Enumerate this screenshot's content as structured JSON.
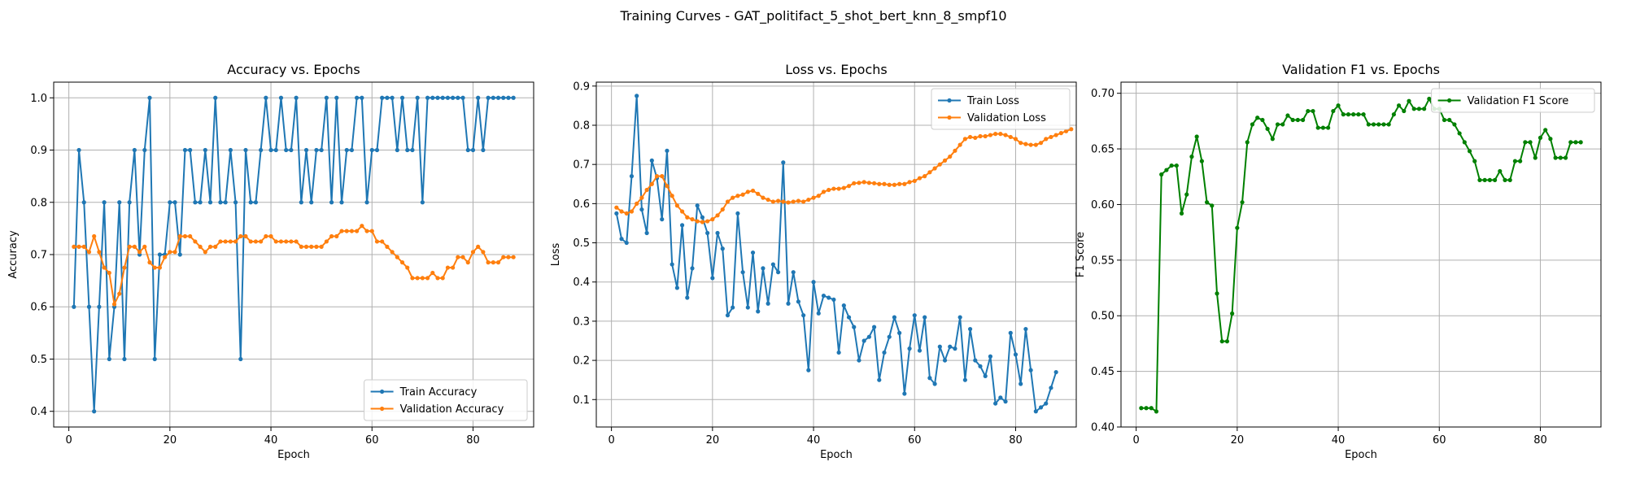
{
  "suptitle": "Training Curves - GAT_politifact_5_shot_bert_knn_8_smpf10",
  "chart_data": [
    {
      "type": "line",
      "title": "Accuracy vs. Epochs",
      "xlabel": "Epoch",
      "ylabel": "Accuracy",
      "xlim": [
        -3,
        92
      ],
      "ylim": [
        0.37,
        1.03
      ],
      "xticks": [
        0,
        20,
        40,
        60,
        80
      ],
      "yticks": [
        0.4,
        0.5,
        0.6,
        0.7,
        0.8,
        0.9,
        1.0
      ],
      "ytick_format": 1,
      "grid": true,
      "legend_position": "lower-right",
      "series": [
        {
          "name": "Train Accuracy",
          "color": "#1f77b4",
          "x_start": 1,
          "values": [
            0.6,
            0.9,
            0.8,
            0.6,
            0.4,
            0.6,
            0.8,
            0.5,
            0.6,
            0.8,
            0.5,
            0.8,
            0.9,
            0.7,
            0.9,
            1.0,
            0.5,
            0.7,
            0.7,
            0.8,
            0.8,
            0.7,
            0.9,
            0.9,
            0.8,
            0.8,
            0.9,
            0.8,
            1.0,
            0.8,
            0.8,
            0.9,
            0.8,
            0.5,
            0.9,
            0.8,
            0.8,
            0.9,
            1.0,
            0.9,
            0.9,
            1.0,
            0.9,
            0.9,
            1.0,
            0.8,
            0.9,
            0.8,
            0.9,
            0.9,
            1.0,
            0.8,
            1.0,
            0.8,
            0.9,
            0.9,
            1.0,
            1.0,
            0.8,
            0.9,
            0.9,
            1.0,
            1.0,
            1.0,
            0.9,
            1.0,
            0.9,
            0.9,
            1.0,
            0.8,
            1.0,
            1.0,
            1.0,
            1.0,
            1.0,
            1.0,
            1.0,
            1.0,
            0.9,
            0.9,
            1.0,
            0.9,
            1.0,
            1.0,
            1.0,
            1.0,
            1.0,
            1.0
          ]
        },
        {
          "name": "Validation Accuracy",
          "color": "#ff7f0e",
          "x_start": 1,
          "values": [
            0.715,
            0.715,
            0.715,
            0.705,
            0.735,
            0.705,
            0.675,
            0.665,
            0.605,
            0.625,
            0.675,
            0.715,
            0.715,
            0.705,
            0.715,
            0.685,
            0.675,
            0.675,
            0.695,
            0.705,
            0.705,
            0.735,
            0.735,
            0.735,
            0.725,
            0.715,
            0.705,
            0.715,
            0.715,
            0.725,
            0.725,
            0.725,
            0.725,
            0.735,
            0.735,
            0.725,
            0.725,
            0.725,
            0.735,
            0.735,
            0.725,
            0.725,
            0.725,
            0.725,
            0.725,
            0.715,
            0.715,
            0.715,
            0.715,
            0.715,
            0.725,
            0.735,
            0.735,
            0.745,
            0.745,
            0.745,
            0.745,
            0.755,
            0.745,
            0.745,
            0.725,
            0.725,
            0.715,
            0.705,
            0.695,
            0.685,
            0.675,
            0.655,
            0.655,
            0.655,
            0.655,
            0.665,
            0.655,
            0.655,
            0.675,
            0.675,
            0.695,
            0.695,
            0.685,
            0.705,
            0.715,
            0.705,
            0.685,
            0.685,
            0.685,
            0.695,
            0.695,
            0.695
          ]
        }
      ]
    },
    {
      "type": "line",
      "title": "Loss vs. Epochs",
      "xlabel": "Epoch",
      "ylabel": "Loss",
      "xlim": [
        -3,
        92
      ],
      "ylim": [
        0.03,
        0.91
      ],
      "xticks": [
        0,
        20,
        40,
        60,
        80
      ],
      "yticks": [
        0.1,
        0.2,
        0.3,
        0.4,
        0.5,
        0.6,
        0.7,
        0.8,
        0.9
      ],
      "ytick_format": 1,
      "grid": true,
      "legend_position": "upper-right",
      "series": [
        {
          "name": "Train Loss",
          "color": "#1f77b4",
          "x_start": 1,
          "values": [
            0.575,
            0.51,
            0.5,
            0.67,
            0.875,
            0.585,
            0.525,
            0.71,
            0.665,
            0.56,
            0.735,
            0.445,
            0.385,
            0.545,
            0.36,
            0.435,
            0.595,
            0.565,
            0.525,
            0.41,
            0.525,
            0.485,
            0.315,
            0.335,
            0.575,
            0.425,
            0.335,
            0.475,
            0.325,
            0.435,
            0.345,
            0.445,
            0.425,
            0.705,
            0.345,
            0.425,
            0.35,
            0.315,
            0.175,
            0.4,
            0.32,
            0.365,
            0.36,
            0.355,
            0.22,
            0.34,
            0.31,
            0.285,
            0.2,
            0.25,
            0.26,
            0.285,
            0.15,
            0.22,
            0.26,
            0.31,
            0.27,
            0.115,
            0.23,
            0.315,
            0.225,
            0.31,
            0.155,
            0.14,
            0.235,
            0.2,
            0.235,
            0.23,
            0.31,
            0.15,
            0.28,
            0.2,
            0.185,
            0.16,
            0.21,
            0.09,
            0.105,
            0.095,
            0.27,
            0.215,
            0.14,
            0.28,
            0.175,
            0.07,
            0.08,
            0.09,
            0.13,
            0.17
          ]
        },
        {
          "name": "Validation Loss",
          "color": "#ff7f0e",
          "x_start": 1,
          "values": [
            0.59,
            0.58,
            0.575,
            0.58,
            0.6,
            0.615,
            0.635,
            0.65,
            0.67,
            0.67,
            0.645,
            0.62,
            0.595,
            0.58,
            0.565,
            0.56,
            0.555,
            0.553,
            0.555,
            0.56,
            0.57,
            0.585,
            0.605,
            0.615,
            0.62,
            0.623,
            0.63,
            0.633,
            0.625,
            0.615,
            0.61,
            0.605,
            0.607,
            0.605,
            0.603,
            0.605,
            0.607,
            0.605,
            0.61,
            0.615,
            0.62,
            0.63,
            0.635,
            0.638,
            0.638,
            0.64,
            0.645,
            0.652,
            0.653,
            0.655,
            0.653,
            0.652,
            0.65,
            0.65,
            0.648,
            0.648,
            0.65,
            0.65,
            0.655,
            0.658,
            0.665,
            0.67,
            0.68,
            0.69,
            0.7,
            0.71,
            0.72,
            0.735,
            0.75,
            0.765,
            0.77,
            0.768,
            0.772,
            0.772,
            0.775,
            0.778,
            0.778,
            0.775,
            0.77,
            0.765,
            0.755,
            0.752,
            0.75,
            0.75,
            0.755,
            0.765,
            0.77,
            0.775,
            0.78,
            0.785,
            0.79
          ]
        }
      ]
    },
    {
      "type": "line",
      "title": "Validation F1 vs. Epochs",
      "xlabel": "Epoch",
      "ylabel": "F1 Score",
      "xlim": [
        -3,
        92
      ],
      "ylim": [
        0.4,
        0.71
      ],
      "xticks": [
        0,
        20,
        40,
        60,
        80
      ],
      "yticks": [
        0.4,
        0.45,
        0.5,
        0.55,
        0.6,
        0.65,
        0.7
      ],
      "ytick_format": 2,
      "grid": true,
      "legend_position": "upper-right",
      "series": [
        {
          "name": "Validation F1 Score",
          "color": "#008000",
          "x_start": 1,
          "values": [
            0.417,
            0.417,
            0.417,
            0.414,
            0.627,
            0.631,
            0.635,
            0.635,
            0.592,
            0.609,
            0.643,
            0.661,
            0.639,
            0.602,
            0.599,
            0.52,
            0.477,
            0.477,
            0.502,
            0.579,
            0.602,
            0.656,
            0.672,
            0.678,
            0.676,
            0.668,
            0.659,
            0.672,
            0.672,
            0.68,
            0.676,
            0.676,
            0.676,
            0.684,
            0.684,
            0.669,
            0.669,
            0.669,
            0.684,
            0.689,
            0.681,
            0.681,
            0.681,
            0.681,
            0.681,
            0.672,
            0.672,
            0.672,
            0.672,
            0.672,
            0.681,
            0.689,
            0.684,
            0.693,
            0.686,
            0.686,
            0.686,
            0.695,
            0.686,
            0.686,
            0.676,
            0.676,
            0.672,
            0.664,
            0.656,
            0.648,
            0.639,
            0.622,
            0.622,
            0.622,
            0.622,
            0.63,
            0.622,
            0.622,
            0.639,
            0.639,
            0.656,
            0.656,
            0.642,
            0.66,
            0.667,
            0.659,
            0.642,
            0.642,
            0.642,
            0.656,
            0.656,
            0.656
          ]
        }
      ]
    }
  ]
}
